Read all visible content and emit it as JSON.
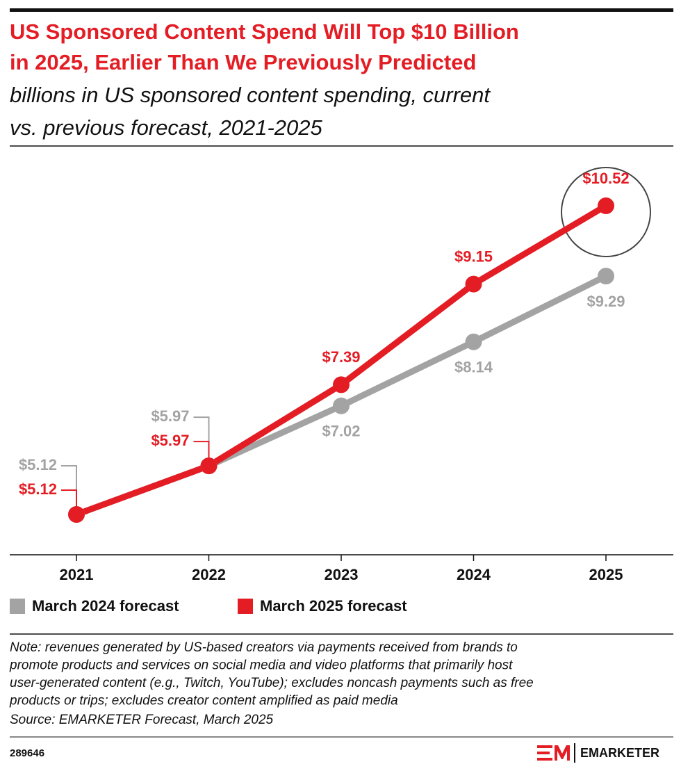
{
  "chart_data": {
    "type": "line",
    "title": [
      "US Sponsored Content Spend Will Top $10 Billion",
      "in 2025, Earlier Than We Previously Predicted"
    ],
    "subtitle": [
      "billions in US sponsored content spending, current",
      "vs. previous forecast, 2021-2025"
    ],
    "categories": [
      "2021",
      "2022",
      "2023",
      "2024",
      "2025"
    ],
    "series": [
      {
        "name": "March 2024 forecast",
        "color": "#a3a3a3",
        "values": [
          5.12,
          5.97,
          7.02,
          8.14,
          9.29
        ],
        "value_labels": [
          "$5.12",
          "$5.97",
          "$7.02",
          "$8.14",
          "$9.29"
        ]
      },
      {
        "name": "March 2025 forecast",
        "color": "#e41d25",
        "values": [
          5.12,
          5.97,
          7.39,
          9.15,
          10.52
        ],
        "value_labels": [
          "$5.12",
          "$5.97",
          "$7.39",
          "$9.15",
          "$10.52"
        ]
      }
    ],
    "legend": "bottom-left",
    "note": [
      "Note: revenues generated by US-based creators via payments received from brands to",
      "promote products and services on social media and video platforms that primarily host",
      "user-generated content (e.g., Twitch, YouTube); excludes noncash payments such as free",
      "products or trips; excludes creator content amplified as paid media"
    ],
    "source": "Source: EMARKETER Forecast, March 2025",
    "chart_id": "289646",
    "brand": "EMARKETER"
  }
}
